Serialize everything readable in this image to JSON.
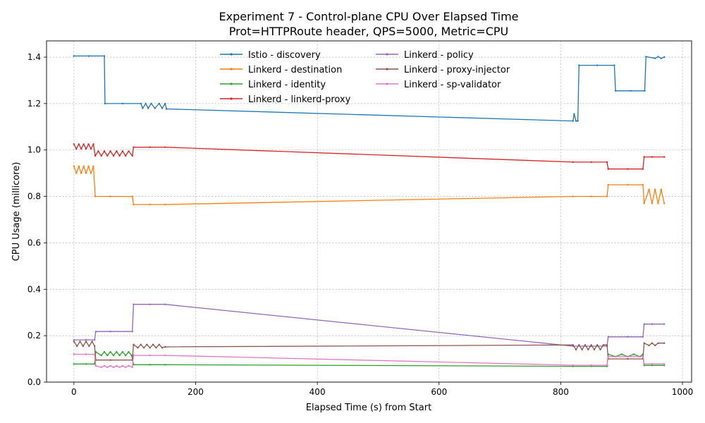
{
  "chart_data": {
    "type": "line",
    "title": "Experiment 7 - Control-plane CPU Over Elapsed Time",
    "subtitle": "Prot=HTTPRoute header, QPS=5000, Metric=CPU",
    "xlabel": "Elapsed Time (s) from Start",
    "ylabel": "CPU Usage (millicore)",
    "xlim": [
      -45,
      1015
    ],
    "ylim": [
      0.0,
      1.47
    ],
    "xticks": [
      0,
      200,
      400,
      600,
      800,
      1000
    ],
    "xtick_labels": [
      "0",
      "200",
      "400",
      "600",
      "800",
      "1000"
    ],
    "yticks": [
      0.0,
      0.2,
      0.4,
      0.6,
      0.8,
      1.0,
      1.2,
      1.4
    ],
    "ytick_labels": [
      "0.0",
      "0.2",
      "0.4",
      "0.6",
      "0.8",
      "1.0",
      "1.2",
      "1.4"
    ],
    "grid": true,
    "legend_position": "top-center",
    "series": [
      {
        "name": "Istio - discovery",
        "color": "#1f77b4",
        "x": [
          0,
          25,
          50,
          51,
          80,
          110,
          113,
          118,
          122,
          127,
          133,
          140,
          145,
          150,
          152,
          820,
          822,
          825,
          828,
          830,
          860,
          888,
          890,
          915,
          938,
          940,
          955,
          960,
          965,
          970
        ],
        "y": [
          1.405,
          1.405,
          1.405,
          1.2,
          1.2,
          1.2,
          1.18,
          1.2,
          1.18,
          1.2,
          1.18,
          1.2,
          1.18,
          1.2,
          1.177,
          1.125,
          1.155,
          1.125,
          1.125,
          1.365,
          1.365,
          1.365,
          1.255,
          1.255,
          1.255,
          1.402,
          1.395,
          1.402,
          1.395,
          1.4
        ]
      },
      {
        "name": "Linkerd - destination",
        "color": "#ff7f0e",
        "x": [
          0,
          4,
          8,
          12,
          16,
          20,
          24,
          28,
          32,
          35,
          60,
          96,
          98,
          125,
          150,
          820,
          850,
          876,
          878,
          910,
          935,
          937,
          945,
          950,
          955,
          960,
          965,
          970
        ],
        "y": [
          0.93,
          0.9,
          0.93,
          0.9,
          0.93,
          0.9,
          0.93,
          0.9,
          0.93,
          0.8,
          0.8,
          0.8,
          0.765,
          0.765,
          0.765,
          0.8,
          0.8,
          0.8,
          0.85,
          0.85,
          0.85,
          0.77,
          0.83,
          0.77,
          0.83,
          0.77,
          0.83,
          0.77
        ]
      },
      {
        "name": "Linkerd - identity",
        "color": "#2ca02c",
        "x": [
          0,
          20,
          34,
          36,
          45,
          50,
          55,
          60,
          65,
          70,
          75,
          80,
          85,
          90,
          95,
          98,
          125,
          150,
          820,
          850,
          876,
          878,
          890,
          900,
          910,
          920,
          930,
          935,
          937,
          950,
          970
        ],
        "y": [
          0.078,
          0.078,
          0.078,
          0.13,
          0.115,
          0.13,
          0.115,
          0.13,
          0.115,
          0.13,
          0.115,
          0.13,
          0.115,
          0.13,
          0.115,
          0.075,
          0.075,
          0.075,
          0.068,
          0.068,
          0.068,
          0.12,
          0.11,
          0.12,
          0.11,
          0.12,
          0.11,
          0.12,
          0.072,
          0.072,
          0.072
        ]
      },
      {
        "name": "Linkerd - linkerd-proxy",
        "color": "#d62728",
        "x": [
          0,
          4,
          8,
          12,
          16,
          20,
          24,
          28,
          32,
          35,
          40,
          45,
          50,
          55,
          60,
          65,
          70,
          75,
          80,
          85,
          90,
          96,
          98,
          125,
          150,
          820,
          850,
          876,
          878,
          910,
          935,
          937,
          950,
          970
        ],
        "y": [
          1.025,
          1.005,
          1.025,
          1.005,
          1.025,
          1.005,
          1.025,
          1.005,
          1.025,
          0.975,
          0.995,
          0.975,
          0.995,
          0.975,
          0.995,
          0.975,
          0.995,
          0.975,
          0.995,
          0.975,
          0.995,
          0.975,
          1.012,
          1.012,
          1.012,
          0.948,
          0.948,
          0.948,
          0.918,
          0.918,
          0.918,
          0.97,
          0.97,
          0.97
        ]
      },
      {
        "name": "Linkerd - policy",
        "color": "#9467bd",
        "x": [
          0,
          20,
          34,
          36,
          60,
          96,
          98,
          125,
          150,
          820,
          850,
          876,
          878,
          910,
          935,
          937,
          950,
          970
        ],
        "y": [
          0.182,
          0.182,
          0.182,
          0.218,
          0.218,
          0.218,
          0.335,
          0.335,
          0.335,
          0.155,
          0.155,
          0.155,
          0.195,
          0.195,
          0.195,
          0.25,
          0.25,
          0.25
        ]
      },
      {
        "name": "Linkerd - proxy-injector",
        "color": "#8c564b",
        "x": [
          0,
          5,
          10,
          15,
          20,
          25,
          30,
          34,
          36,
          60,
          96,
          98,
          105,
          110,
          115,
          120,
          125,
          130,
          135,
          140,
          145,
          150,
          820,
          825,
          830,
          835,
          840,
          845,
          850,
          855,
          860,
          865,
          870,
          876,
          878,
          910,
          935,
          937,
          945,
          950,
          955,
          960,
          970
        ],
        "y": [
          0.175,
          0.155,
          0.175,
          0.155,
          0.175,
          0.155,
          0.175,
          0.155,
          0.095,
          0.095,
          0.095,
          0.162,
          0.148,
          0.162,
          0.148,
          0.162,
          0.148,
          0.162,
          0.148,
          0.162,
          0.148,
          0.152,
          0.16,
          0.14,
          0.16,
          0.14,
          0.16,
          0.14,
          0.16,
          0.14,
          0.16,
          0.14,
          0.16,
          0.16,
          0.1,
          0.1,
          0.1,
          0.168,
          0.158,
          0.168,
          0.158,
          0.168,
          0.168
        ]
      },
      {
        "name": "Linkerd - sp-validator",
        "color": "#e377c2",
        "x": [
          0,
          20,
          34,
          36,
          45,
          50,
          55,
          60,
          65,
          70,
          75,
          80,
          85,
          90,
          96,
          98,
          125,
          150,
          820,
          850,
          876,
          878,
          910,
          935,
          937,
          950,
          970
        ],
        "y": [
          0.12,
          0.12,
          0.12,
          0.07,
          0.064,
          0.07,
          0.064,
          0.07,
          0.064,
          0.07,
          0.064,
          0.07,
          0.064,
          0.07,
          0.064,
          0.115,
          0.115,
          0.115,
          0.073,
          0.073,
          0.073,
          0.11,
          0.11,
          0.11,
          0.078,
          0.078,
          0.078
        ]
      }
    ]
  }
}
